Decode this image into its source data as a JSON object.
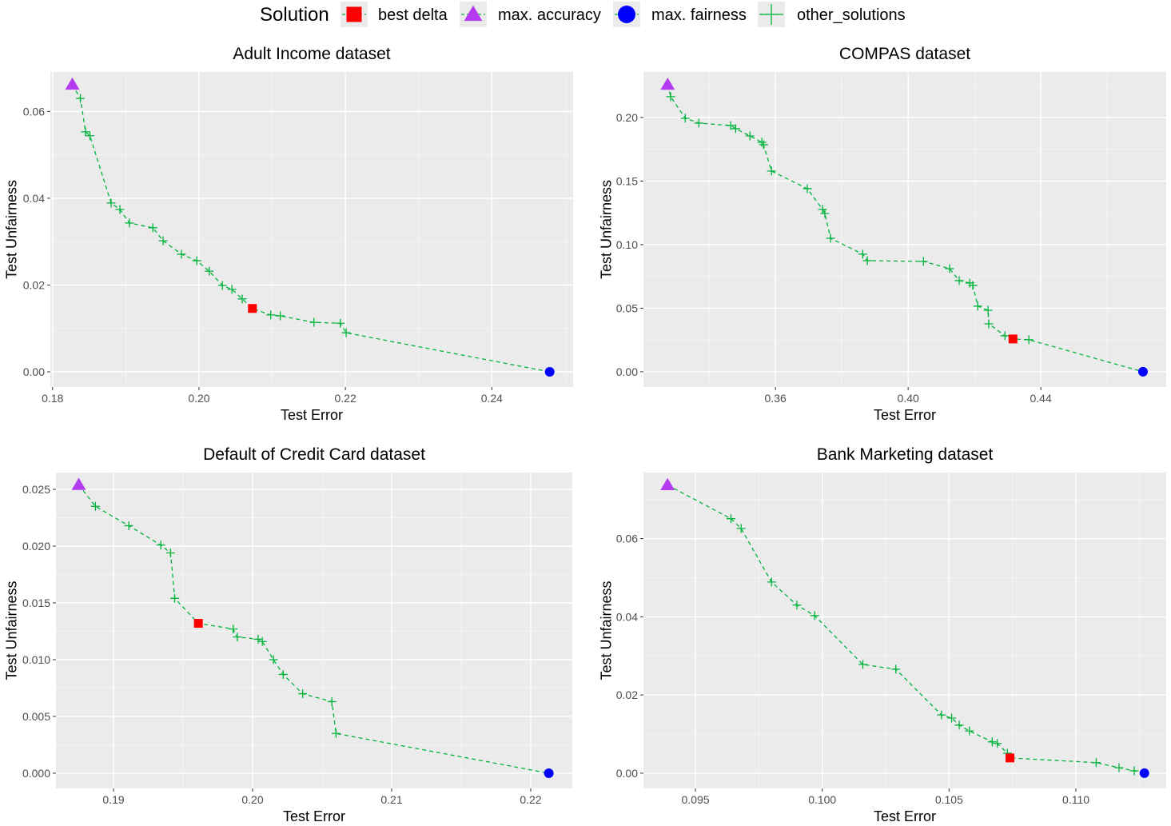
{
  "legend": {
    "title": "Solution",
    "items": [
      {
        "label": "best delta",
        "shape": "square",
        "color": "#FF0000"
      },
      {
        "label": "max. accuracy",
        "shape": "triangle",
        "color": "#B43CF0"
      },
      {
        "label": "max. fairness",
        "shape": "circle",
        "color": "#0000FF"
      },
      {
        "label": "other_solutions",
        "shape": "plus",
        "color": "#00B33C"
      }
    ]
  },
  "chart_data": [
    {
      "type": "line",
      "title": "Adult Income dataset",
      "xlabel": "Test Error",
      "ylabel": "Test Unfairness",
      "xlim": [
        0.1797,
        0.2511
      ],
      "ylim": [
        -0.0035,
        0.0691
      ],
      "xticks": [
        {
          "v": 0.18,
          "label": "0.18"
        },
        {
          "v": 0.2,
          "label": "0.20"
        },
        {
          "v": 0.22,
          "label": "0.22"
        },
        {
          "v": 0.24,
          "label": "0.24"
        }
      ],
      "yticks": [
        {
          "v": 0.0,
          "label": "0.00"
        },
        {
          "v": 0.02,
          "label": "0.02"
        },
        {
          "v": 0.04,
          "label": "0.04"
        },
        {
          "v": 0.06,
          "label": "0.06"
        }
      ],
      "max_accuracy": [
        0.1827,
        0.0662
      ],
      "best_delta": [
        0.2073,
        0.0146
      ],
      "max_fairness": [
        0.2479,
        0.0
      ],
      "other_solutions": [
        [
          0.1838,
          0.063
        ],
        [
          0.1845,
          0.0553
        ],
        [
          0.1851,
          0.0544
        ],
        [
          0.188,
          0.0389
        ],
        [
          0.1892,
          0.0374
        ],
        [
          0.1905,
          0.0343
        ],
        [
          0.1937,
          0.0332
        ],
        [
          0.1951,
          0.0302
        ],
        [
          0.1976,
          0.0271
        ],
        [
          0.1997,
          0.0256
        ],
        [
          0.2014,
          0.0232
        ],
        [
          0.2032,
          0.0199
        ],
        [
          0.2045,
          0.019
        ],
        [
          0.2059,
          0.0168
        ],
        [
          0.2098,
          0.0131
        ],
        [
          0.2111,
          0.0129
        ],
        [
          0.2157,
          0.0114
        ],
        [
          0.2193,
          0.0112
        ],
        [
          0.2201,
          0.009
        ]
      ]
    },
    {
      "type": "line",
      "title": "COMPAS dataset",
      "xlabel": "Test Error",
      "ylabel": "Test Unfairness",
      "xlim": [
        0.3202,
        0.4778
      ],
      "ylim": [
        -0.012,
        0.2358
      ],
      "xticks": [
        {
          "v": 0.36,
          "label": "0.36"
        },
        {
          "v": 0.4,
          "label": "0.40"
        },
        {
          "v": 0.44,
          "label": "0.44"
        }
      ],
      "yticks": [
        {
          "v": 0.0,
          "label": "0.00"
        },
        {
          "v": 0.05,
          "label": "0.05"
        },
        {
          "v": 0.1,
          "label": "0.10"
        },
        {
          "v": 0.15,
          "label": "0.15"
        },
        {
          "v": 0.2,
          "label": "0.20"
        }
      ],
      "max_accuracy": [
        0.3275,
        0.2258
      ],
      "best_delta": [
        0.4316,
        0.0258
      ],
      "max_fairness": [
        0.4708,
        0.0
      ],
      "other_solutions": [
        [
          0.3284,
          0.2164
        ],
        [
          0.3328,
          0.1994
        ],
        [
          0.3369,
          0.1956
        ],
        [
          0.3465,
          0.1937
        ],
        [
          0.348,
          0.1912
        ],
        [
          0.3523,
          0.1855
        ],
        [
          0.3559,
          0.1805
        ],
        [
          0.3564,
          0.1786
        ],
        [
          0.3588,
          0.1579
        ],
        [
          0.3696,
          0.144
        ],
        [
          0.3742,
          0.1277
        ],
        [
          0.3749,
          0.1245
        ],
        [
          0.3766,
          0.105
        ],
        [
          0.3863,
          0.0925
        ],
        [
          0.3877,
          0.0874
        ],
        [
          0.4046,
          0.0868
        ],
        [
          0.4125,
          0.0811
        ],
        [
          0.4154,
          0.0717
        ],
        [
          0.4186,
          0.0698
        ],
        [
          0.4195,
          0.0679
        ],
        [
          0.421,
          0.0516
        ],
        [
          0.4241,
          0.0484
        ],
        [
          0.4243,
          0.0377
        ],
        [
          0.4292,
          0.0283
        ],
        [
          0.4364,
          0.0252
        ]
      ]
    },
    {
      "type": "line",
      "title": "Default of Credit Card dataset",
      "xlabel": "Test Error",
      "ylabel": "Test Unfairness",
      "xlim": [
        0.18586,
        0.22299
      ],
      "ylim": [
        -0.00134,
        0.02648
      ],
      "xticks": [
        {
          "v": 0.19,
          "label": "0.19"
        },
        {
          "v": 0.2,
          "label": "0.20"
        },
        {
          "v": 0.21,
          "label": "0.21"
        },
        {
          "v": 0.22,
          "label": "0.22"
        }
      ],
      "yticks": [
        {
          "v": 0.0,
          "label": "0.000"
        },
        {
          "v": 0.005,
          "label": "0.005"
        },
        {
          "v": 0.01,
          "label": "0.010"
        },
        {
          "v": 0.015,
          "label": "0.015"
        },
        {
          "v": 0.02,
          "label": "0.020"
        },
        {
          "v": 0.025,
          "label": "0.025"
        }
      ],
      "max_accuracy": [
        0.1875,
        0.0254
      ],
      "best_delta": [
        0.1961,
        0.0132
      ],
      "max_fairness": [
        0.2213,
        0.0
      ],
      "other_solutions": [
        [
          0.1887,
          0.0235
        ],
        [
          0.1911,
          0.0218
        ],
        [
          0.1934,
          0.0201
        ],
        [
          0.1941,
          0.0194
        ],
        [
          0.1944,
          0.0154
        ],
        [
          0.1986,
          0.0127
        ],
        [
          0.1989,
          0.012
        ],
        [
          0.2004,
          0.0118
        ],
        [
          0.2007,
          0.0116
        ],
        [
          0.2015,
          0.01
        ],
        [
          0.2022,
          0.0087
        ],
        [
          0.2036,
          0.007
        ],
        [
          0.2057,
          0.0063
        ],
        [
          0.206,
          0.0035
        ]
      ]
    },
    {
      "type": "line",
      "title": "Bank Marketing dataset",
      "xlabel": "Test Error",
      "ylabel": "Test Unfairness",
      "xlim": [
        0.09295,
        0.11356
      ],
      "ylim": [
        -0.0039,
        0.0769
      ],
      "xticks": [
        {
          "v": 0.095,
          "label": "0.095"
        },
        {
          "v": 0.1,
          "label": "0.100"
        },
        {
          "v": 0.105,
          "label": "0.105"
        },
        {
          "v": 0.11,
          "label": "0.110"
        }
      ],
      "yticks": [
        {
          "v": 0.0,
          "label": "0.00"
        },
        {
          "v": 0.02,
          "label": "0.02"
        },
        {
          "v": 0.04,
          "label": "0.04"
        },
        {
          "v": 0.06,
          "label": "0.06"
        }
      ],
      "max_accuracy": [
        0.0939,
        0.0737
      ],
      "best_delta": [
        0.1074,
        0.0039
      ],
      "max_fairness": [
        0.1127,
        0.0
      ],
      "other_solutions": [
        [
          0.0964,
          0.0651
        ],
        [
          0.0968,
          0.0626
        ],
        [
          0.098,
          0.0489
        ],
        [
          0.099,
          0.043
        ],
        [
          0.0997,
          0.0403
        ],
        [
          0.1016,
          0.0278
        ],
        [
          0.1029,
          0.0266
        ],
        [
          0.1047,
          0.0149
        ],
        [
          0.1051,
          0.0141
        ],
        [
          0.1054,
          0.0123
        ],
        [
          0.1058,
          0.0108
        ],
        [
          0.1067,
          0.008
        ],
        [
          0.1069,
          0.0076
        ],
        [
          0.1073,
          0.0051
        ],
        [
          0.1108,
          0.0027
        ],
        [
          0.1117,
          0.0014
        ],
        [
          0.1123,
          0.0006
        ]
      ]
    }
  ]
}
